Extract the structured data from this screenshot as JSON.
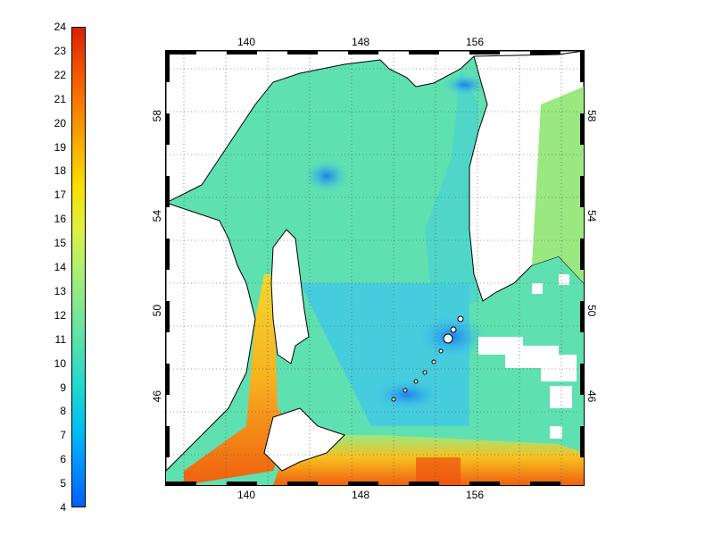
{
  "colorbar": {
    "min": 4,
    "max": 24,
    "labels": [
      "24",
      "23",
      "22",
      "21",
      "20",
      "19",
      "18",
      "17",
      "16",
      "15",
      "14",
      "13",
      "12",
      "11",
      "10",
      "9",
      "8",
      "7",
      "6",
      "5",
      "4"
    ],
    "colors": [
      "#0060ff",
      "#0090ff",
      "#00c0f0",
      "#20d8d0",
      "#50e0b0",
      "#80e890",
      "#b0f070",
      "#e0f040",
      "#f8e000",
      "#f8b000",
      "#f88000",
      "#f05000",
      "#d82000"
    ]
  },
  "map": {
    "lon_ticks_top": [
      "140",
      "148",
      "156"
    ],
    "lon_ticks_bottom": [
      "140",
      "148",
      "156"
    ],
    "lat_ticks_left": [
      "58",
      "54",
      "50",
      "46"
    ],
    "lat_ticks_right": [
      "58",
      "54",
      "50",
      "46"
    ],
    "colors": {
      "sea_main": "#5fe0b0",
      "sea_cool": "#40c8e8",
      "sea_cold": "#1e90f0",
      "sea_warm": "#f8c020",
      "sea_hot": "#f05010",
      "land": "#ffffff",
      "coast": "#000000"
    }
  }
}
